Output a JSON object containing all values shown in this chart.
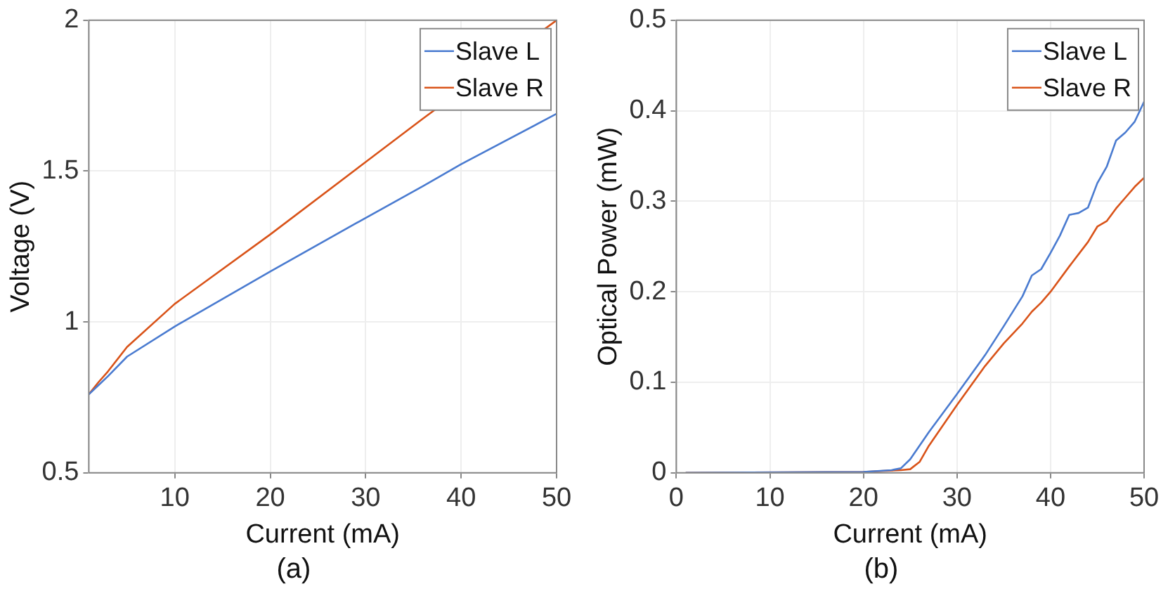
{
  "chart_data": [
    {
      "type": "line",
      "xlabel": "Current (mA)",
      "ylabel": "Voltage (V)",
      "xlim": [
        1,
        50
      ],
      "xticks": [
        10,
        20,
        30,
        40,
        50
      ],
      "ylim": [
        0.5,
        2
      ],
      "yticks": [
        0.5,
        1,
        1.5,
        2
      ],
      "grid": true,
      "legend": "top right",
      "marker": "none",
      "line_style": "solid",
      "annotations": [
        "(a)"
      ],
      "x": [
        1,
        2,
        3,
        5,
        10,
        20,
        30,
        36,
        40,
        50
      ],
      "series": [
        {
          "name": "Slave L",
          "color": "#4a7bd0",
          "values": [
            0.76,
            0.79,
            0.82,
            0.885,
            0.985,
            1.167,
            1.345,
            1.45,
            1.523,
            1.69
          ]
        },
        {
          "name": "Slave R",
          "color": "#d95319",
          "values": [
            0.76,
            0.8,
            0.836,
            0.917,
            1.06,
            1.29,
            1.53,
            1.674,
            null,
            2.0
          ]
        }
      ]
    },
    {
      "type": "line",
      "xlabel": "Current (mA)",
      "ylabel": "Optical Power (mW)",
      "xlim": [
        0,
        50
      ],
      "xticks": [
        0,
        10,
        20,
        30,
        40,
        50
      ],
      "ylim": [
        0,
        0.5
      ],
      "yticks": [
        0,
        0.1,
        0.2,
        0.3,
        0.4,
        0.5
      ],
      "grid": true,
      "legend": "top right",
      "marker": "none",
      "line_style": "solid",
      "annotations": [
        "(b)"
      ],
      "series": [
        {
          "name": "Slave L",
          "color": "#4a7bd0",
          "x": [
            1,
            20,
            23,
            24,
            25,
            27,
            30,
            33,
            35,
            37,
            38,
            39,
            40,
            41,
            42,
            43,
            44,
            45,
            46,
            47,
            48,
            49,
            50
          ],
          "values": [
            0,
            0.001,
            0.003,
            0.005,
            0.015,
            0.045,
            0.087,
            0.13,
            0.162,
            0.195,
            0.218,
            0.225,
            0.243,
            0.262,
            0.285,
            0.287,
            0.293,
            0.32,
            0.338,
            0.367,
            0.376,
            0.388,
            0.41
          ]
        },
        {
          "name": "Slave R",
          "color": "#d95319",
          "x": [
            1,
            20,
            24,
            25,
            26,
            27,
            30,
            33,
            35,
            37,
            38,
            39,
            40,
            42,
            44,
            45,
            46,
            47,
            48,
            49,
            50
          ],
          "values": [
            0,
            0.001,
            0.003,
            0.004,
            0.012,
            0.03,
            0.075,
            0.118,
            0.143,
            0.165,
            0.178,
            0.188,
            0.2,
            0.228,
            0.255,
            0.272,
            0.278,
            0.292,
            0.304,
            0.316,
            0.326
          ]
        }
      ]
    }
  ]
}
